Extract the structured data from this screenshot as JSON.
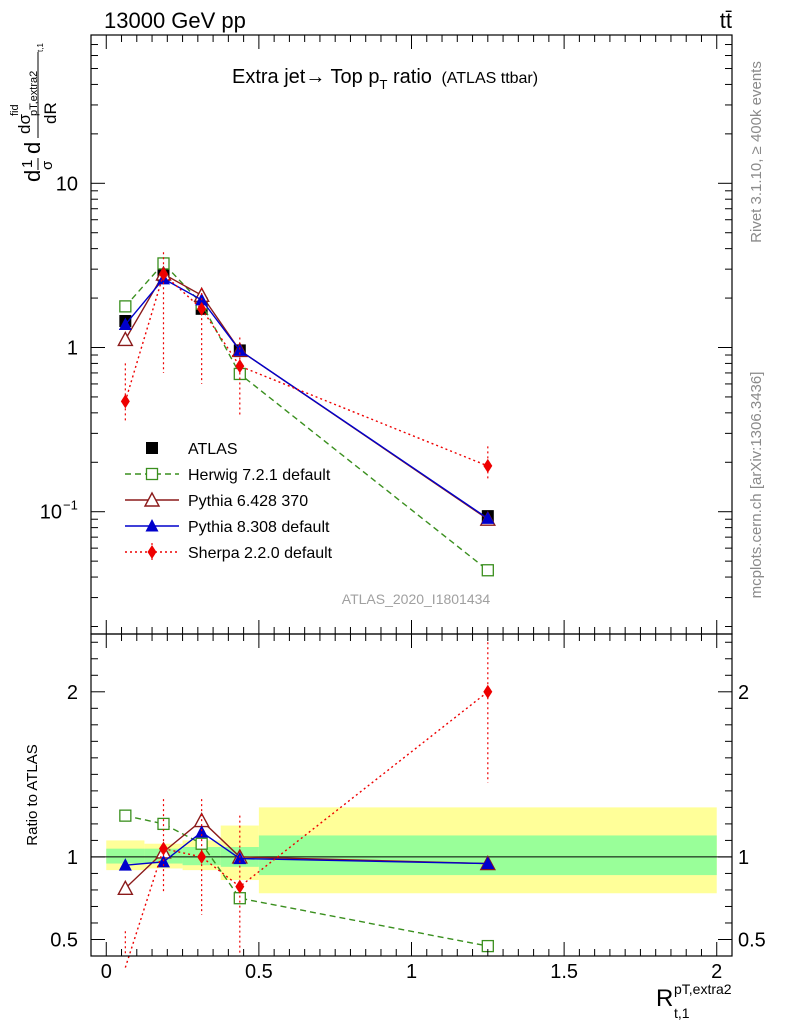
{
  "header": {
    "left": "13000 GeV pp",
    "right": "tt̄"
  },
  "plot_title": {
    "main": "Extra jet→ Top p",
    "sub": "T",
    "suffix": " ratio",
    "tag": "(ATLAS ttbar)"
  },
  "side_labels": {
    "rivet": "Rivet 3.1.10, ≥ 400k events",
    "mcplots": "mcplots.cern.ch [arXiv:1306.3436]"
  },
  "analysis_id": "ATLAS_2020_I1801434",
  "ylabel_top": {
    "d1": "d",
    "one": "1",
    "sigma": "σ",
    "d2": "d",
    "dsig": "dσ",
    "fid": "fid",
    "sub": "pT,extra2",
    "subsub": "t,1",
    "dR": "dR"
  },
  "ylabel_bottom": "Ratio to ATLAS",
  "xlabel": {
    "main": "R",
    "sup": "pT,extra2",
    "sub": "t,1"
  },
  "colors": {
    "atlas": "#000000",
    "herwig": "#3a8f1e",
    "pythia6": "#8b1a1a",
    "pythia8": "#0000cc",
    "sherpa": "#ee0000",
    "band_inner": "#99ff99",
    "band_outer": "#ffff99"
  },
  "chart_data": [
    {
      "type": "line",
      "panel": "main",
      "yscale": "log",
      "xlim": [
        -0.05,
        2.05
      ],
      "ylim": [
        0.018,
        80
      ],
      "yticks": [
        {
          "value": 0.1,
          "label": "10",
          "exp": "−1"
        },
        {
          "value": 1,
          "label": "1"
        },
        {
          "value": 10,
          "label": "10"
        }
      ],
      "x": [
        0.0625,
        0.1875,
        0.3125,
        0.4375,
        1.25
      ],
      "series": [
        {
          "name": "ATLAS",
          "key": "atlas",
          "marker": "square-filled",
          "line": "none",
          "values": [
            1.45,
            2.75,
            1.72,
            0.96,
            0.094
          ],
          "err": [
            0,
            0,
            0,
            0,
            0
          ]
        },
        {
          "name": "Herwig 7.2.1 default",
          "key": "herwig",
          "marker": "square-open",
          "line": "dashed",
          "values": [
            1.78,
            3.25,
            1.85,
            0.69,
            0.044
          ],
          "err": [
            0,
            0,
            0,
            0,
            0.002
          ]
        },
        {
          "name": "Pythia 6.428 370",
          "key": "pythia6",
          "marker": "triangle-open",
          "line": "solid",
          "values": [
            1.12,
            2.8,
            2.08,
            0.96,
            0.09
          ],
          "err": [
            0,
            0,
            0,
            0,
            0
          ]
        },
        {
          "name": "Pythia 8.308 default",
          "key": "pythia8",
          "marker": "triangle-filled",
          "line": "solid",
          "values": [
            1.38,
            2.62,
            1.95,
            0.96,
            0.091
          ],
          "err": [
            0,
            0,
            0,
            0,
            0
          ]
        },
        {
          "name": "Sherpa 2.2.0 default",
          "key": "sherpa",
          "marker": "diamond-filled",
          "line": "dotted",
          "values": [
            0.47,
            2.8,
            1.72,
            0.77,
            0.19
          ],
          "err_lo": [
            0.35,
            0.7,
            0.6,
            0.38,
            0.155
          ],
          "err_hi": [
            0.8,
            3.8,
            2.3,
            1.15,
            0.25
          ]
        }
      ]
    },
    {
      "type": "line",
      "panel": "ratio",
      "xlim": [
        -0.05,
        2.05
      ],
      "ylim": [
        0.4,
        2.35
      ],
      "xticks": [
        0,
        0.5,
        1,
        1.5,
        2
      ],
      "xticklabels": [
        "0",
        "0.5",
        "1",
        "1.5",
        "2"
      ],
      "yticks": [
        0.5,
        1,
        2
      ],
      "yticklabels": [
        "0.5",
        "1",
        "2"
      ],
      "x": [
        0.0625,
        0.1875,
        0.3125,
        0.4375,
        1.25
      ],
      "bands": {
        "edges": [
          0,
          0.125,
          0.25,
          0.375,
          0.5,
          2.0
        ],
        "inner": [
          [
            0.96,
            1.05
          ],
          [
            0.96,
            1.05
          ],
          [
            0.95,
            1.06
          ],
          [
            0.94,
            1.06
          ],
          [
            0.89,
            1.13
          ]
        ],
        "outer": [
          [
            0.92,
            1.1
          ],
          [
            0.93,
            1.08
          ],
          [
            0.92,
            1.1
          ],
          [
            0.86,
            1.19
          ],
          [
            0.78,
            1.3
          ]
        ]
      },
      "series": [
        {
          "name": "Herwig 7.2.1 default",
          "key": "herwig",
          "marker": "square-open",
          "line": "dashed",
          "values": [
            1.25,
            1.2,
            1.08,
            0.75,
            0.46
          ],
          "err": [
            0.03,
            0,
            0,
            0,
            0.025
          ]
        },
        {
          "name": "Pythia 6.428 370",
          "key": "pythia6",
          "marker": "triangle-open",
          "line": "solid",
          "values": [
            0.81,
            1.03,
            1.22,
            1.0,
            0.96
          ],
          "err": [
            0,
            0,
            0,
            0,
            0
          ]
        },
        {
          "name": "Pythia 8.308 default",
          "key": "pythia8",
          "marker": "triangle-filled",
          "line": "solid",
          "values": [
            0.95,
            0.97,
            1.15,
            0.99,
            0.96
          ],
          "err": [
            0.03,
            0.02,
            0.03,
            0.02,
            0.03
          ]
        },
        {
          "name": "Sherpa 2.2.0 default",
          "key": "sherpa",
          "marker": "diamond-filled",
          "line": "dotted",
          "values": [
            0.33,
            1.05,
            1.0,
            0.82,
            2.0
          ],
          "err_lo": [
            0.2,
            0.78,
            0.65,
            0.38,
            1.45
          ],
          "err_hi": [
            0.55,
            1.35,
            1.35,
            1.25,
            2.3
          ]
        }
      ]
    }
  ]
}
